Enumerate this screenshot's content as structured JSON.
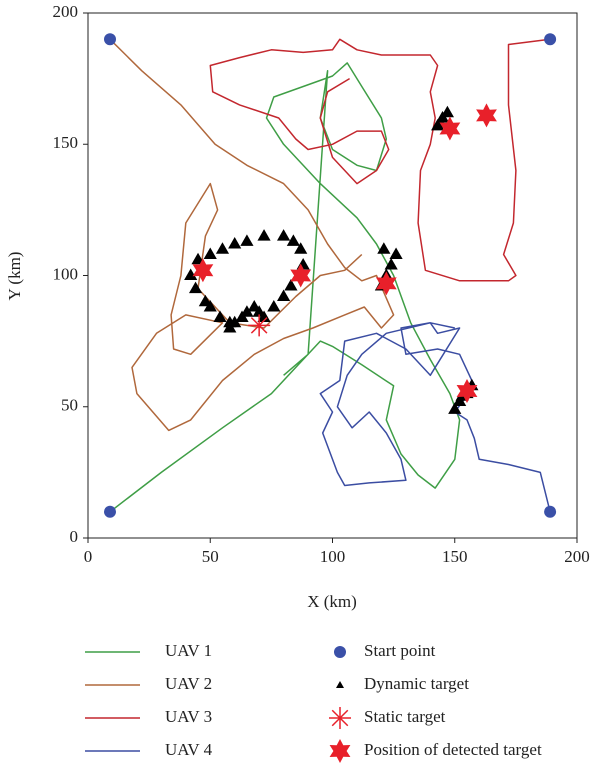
{
  "chart_data": {
    "type": "line",
    "xlabel": "X (km)",
    "ylabel": "Y (km)",
    "xlim": [
      0,
      200
    ],
    "ylim": [
      0,
      200
    ],
    "xticks": [
      0,
      50,
      100,
      150,
      200
    ],
    "yticks": [
      0,
      50,
      100,
      150,
      200
    ],
    "legend": "bottom",
    "series": [
      {
        "name": "UAV 1",
        "type": "line",
        "color": "#3f9e46",
        "x": [
          9,
          30,
          55,
          75,
          85,
          95,
          100,
          112,
          125,
          122,
          128,
          135,
          142,
          150,
          152,
          148,
          140,
          132,
          125,
          118,
          110,
          95,
          80,
          73,
          76,
          88,
          100,
          106,
          112,
          120,
          122,
          118,
          110,
          100,
          95,
          98,
          90,
          80
        ],
        "y": [
          10,
          25,
          42,
          55,
          65,
          75,
          73,
          66,
          58,
          45,
          32,
          24,
          19,
          30,
          45,
          55,
          68,
          82,
          100,
          112,
          122,
          135,
          150,
          160,
          168,
          172,
          176,
          181,
          172,
          160,
          152,
          140,
          142,
          148,
          160,
          178,
          70,
          62
        ]
      },
      {
        "name": "UAV 2",
        "type": "line",
        "color": "#b0683c",
        "x": [
          9,
          22,
          38,
          52,
          65,
          80,
          90,
          98,
          105,
          112,
          118,
          125,
          120,
          113,
          105,
          92,
          80,
          68,
          55,
          42,
          33,
          20,
          18,
          28,
          40,
          55,
          42,
          35,
          34,
          38,
          40,
          50,
          53,
          48,
          45,
          58,
          72,
          85,
          95,
          105,
          112
        ],
        "y": [
          190,
          178,
          165,
          150,
          142,
          135,
          125,
          112,
          103,
          98,
          100,
          85,
          80,
          88,
          85,
          80,
          76,
          70,
          60,
          45,
          41,
          55,
          65,
          78,
          85,
          82,
          70,
          72,
          85,
          100,
          120,
          135,
          125,
          115,
          95,
          82,
          80,
          92,
          100,
          102,
          108
        ]
      },
      {
        "name": "UAV 3",
        "type": "line",
        "color": "#c3272e",
        "x": [
          189,
          172,
          172,
          175,
          174,
          170,
          175,
          172,
          152,
          138,
          135,
          136,
          140,
          142,
          140,
          143,
          140,
          120,
          110,
          103,
          100,
          88,
          75,
          62,
          50,
          51,
          62,
          78,
          85,
          90,
          100,
          110,
          120,
          123,
          118,
          110,
          100,
          95,
          98,
          107
        ],
        "y": [
          190,
          188,
          165,
          140,
          120,
          108,
          100,
          98,
          98,
          102,
          120,
          140,
          150,
          160,
          170,
          180,
          184,
          184,
          186,
          190,
          186,
          185,
          186,
          183,
          180,
          170,
          165,
          160,
          152,
          148,
          150,
          155,
          155,
          148,
          140,
          135,
          145,
          160,
          170,
          175
        ]
      },
      {
        "name": "UAV 4",
        "type": "line",
        "color": "#3b4da2",
        "x": [
          189,
          185,
          172,
          160,
          158,
          155,
          150,
          158,
          152,
          143,
          130,
          128,
          140,
          143,
          152,
          140,
          130,
          118,
          105,
          103,
          95,
          100,
          96,
          102,
          105,
          115,
          130,
          128,
          122,
          115,
          108,
          102,
          106,
          112,
          122,
          140,
          150
        ],
        "y": [
          10,
          25,
          28,
          30,
          38,
          45,
          48,
          58,
          70,
          72,
          70,
          80,
          82,
          78,
          80,
          62,
          72,
          78,
          75,
          60,
          55,
          48,
          40,
          25,
          20,
          21,
          22,
          30,
          40,
          48,
          42,
          50,
          62,
          70,
          78,
          82,
          80
        ]
      },
      {
        "name": "Start point",
        "type": "scatter",
        "marker": "circle",
        "color": "#3a50a8",
        "x": [
          9,
          189,
          9,
          189
        ],
        "y": [
          190,
          190,
          10,
          10
        ]
      },
      {
        "name": "Dynamic target",
        "type": "scatter",
        "marker": "triangle",
        "color": "#000000",
        "x": [
          58,
          60,
          63,
          65,
          68,
          70,
          72,
          76,
          80,
          83,
          86,
          88,
          87,
          84,
          80,
          72,
          65,
          60,
          55,
          50,
          45,
          42,
          44,
          48,
          50,
          54,
          58,
          120,
          122,
          124,
          126,
          121,
          143,
          145,
          147,
          144,
          150,
          152,
          155,
          157,
          153
        ],
        "y": [
          80,
          82,
          84,
          86,
          88,
          86,
          84,
          88,
          92,
          96,
          100,
          104,
          110,
          113,
          115,
          115,
          113,
          112,
          110,
          108,
          106,
          100,
          95,
          90,
          88,
          84,
          82,
          96,
          100,
          104,
          108,
          110,
          157,
          160,
          162,
          158,
          49,
          52,
          55,
          58,
          54
        ]
      },
      {
        "name": "Static target",
        "type": "scatter",
        "marker": "asterisk",
        "color": "#e8202a",
        "x": [
          70
        ],
        "y": [
          81
        ]
      },
      {
        "name": "Position of detected target",
        "type": "scatter",
        "marker": "star",
        "color": "#e8202a",
        "x": [
          47,
          87,
          122,
          148,
          163,
          155
        ],
        "y": [
          102,
          100,
          97,
          156,
          161,
          56
        ]
      }
    ]
  }
}
